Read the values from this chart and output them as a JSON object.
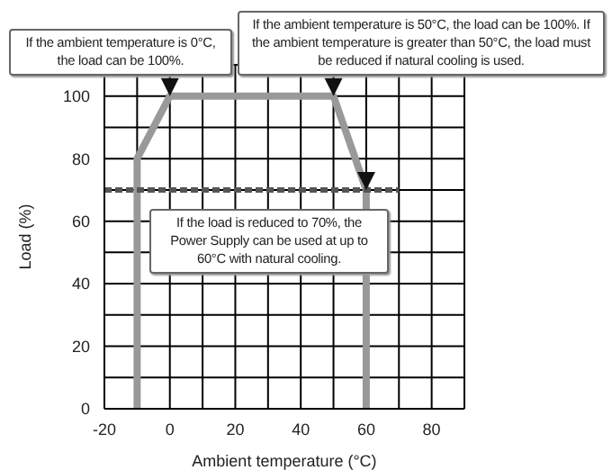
{
  "chart_data": {
    "type": "line",
    "xlabel": "Ambient temperature (°C)",
    "ylabel": "Load (%)",
    "xlim": [
      -20,
      90
    ],
    "xticks": [
      -20,
      {
        "value": -10,
        "label": null
      },
      0,
      {
        "value": 10,
        "label": null
      },
      20,
      {
        "value": 30,
        "label": null
      },
      40,
      {
        "value": 50,
        "label": null
      },
      60,
      {
        "value": 70,
        "label": null
      },
      80,
      {
        "value": 90,
        "label": null
      }
    ],
    "ylim": [
      0,
      110
    ],
    "yticks": [
      0,
      {
        "value": 10,
        "label": null
      },
      20,
      {
        "value": 30,
        "label": null
      },
      40,
      {
        "value": 50,
        "label": null
      },
      60,
      {
        "value": 70,
        "label": null
      },
      80,
      {
        "value": 90,
        "label": null
      },
      100,
      {
        "value": 110,
        "label": null
      }
    ],
    "grid": true,
    "marker": "none",
    "series": [
      {
        "color": "#999999",
        "x": [
          -10,
          -10,
          0,
          50,
          60,
          60
        ],
        "values": [
          0,
          80,
          100,
          100,
          70,
          0
        ],
        "line_style": "solid"
      },
      {
        "color": "#555555",
        "x": [
          -20,
          70
        ],
        "values": [
          70,
          70
        ],
        "line_style": "dashed"
      }
    ],
    "annotations": [
      {
        "text": "If the ambient temperature is 0°C, the load can be 100%.",
        "x": 0,
        "y": 100
      },
      {
        "text": "If the ambient temperature is 50°C, the load can be 100%. If the ambient temperature is greater than 50°C, the load must be reduced if natural cooling is used.",
        "x": 50,
        "y": 100
      },
      {
        "text": "If the load is reduced to 70%, the Power Supply can be used at up to 60°C with natural cooling.",
        "x": 60,
        "y": 70
      }
    ]
  }
}
